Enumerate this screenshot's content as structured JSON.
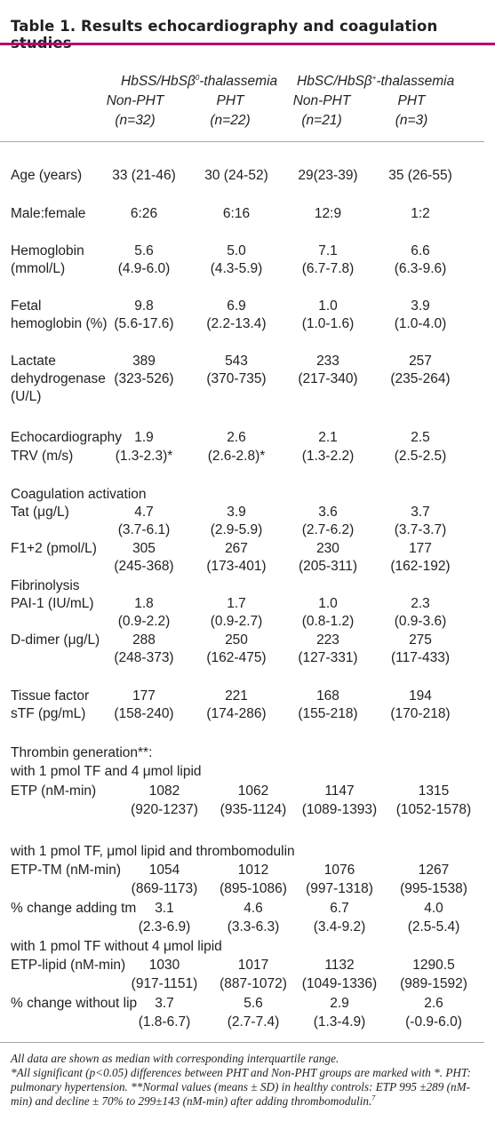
{
  "title": "Table 1. Results echocardiography and coagulation studies",
  "headers": {
    "group1": "HbSS/HbSβ",
    "group1_sup": "0",
    "group1_suffix": "-thalassemia",
    "group2": "HbSC/HbSβ",
    "group2_sup": "+",
    "group2_suffix": "-thalassemia",
    "cols": [
      {
        "label": "Non-PHT",
        "n": "(n=32)"
      },
      {
        "label": "PHT",
        "n": "(n=22)"
      },
      {
        "label": "Non-PHT",
        "n": "(n=21)"
      },
      {
        "label": "PHT",
        "n": "(n=3)"
      }
    ]
  },
  "rows": {
    "age": {
      "label": "Age (years)",
      "v": [
        "33 (21-46)",
        "30 (24-52)",
        "29(23-39)",
        "35 (26-55)"
      ]
    },
    "sex": {
      "label": "Male:female",
      "v": [
        "6:26",
        "6:16",
        "12:9",
        "1:2"
      ]
    },
    "hb": {
      "label1": "Hemoglobin",
      "label2": "(mmol/L)",
      "v": [
        "5.6",
        "5.0",
        "7.1",
        "6.6"
      ],
      "r": [
        "(4.9-6.0)",
        "(4.3-5.9)",
        "(6.7-7.8)",
        "(6.3-9.6)"
      ]
    },
    "hbf": {
      "label1": "Fetal",
      "label2": "hemoglobin (%)",
      "v": [
        "9.8",
        "6.9",
        "1.0",
        "3.9"
      ],
      "r": [
        "(5.6-17.6)",
        "(2.2-13.4)",
        "(1.0-1.6)",
        "(1.0-4.0)"
      ]
    },
    "ldh": {
      "label1": "Lactate",
      "label2": "dehydrogenase",
      "label3": "(U/L)",
      "v": [
        "389",
        "543",
        "233",
        "257"
      ],
      "r": [
        "(323-526)",
        "(370-735)",
        "(217-340)",
        "(235-264)"
      ]
    },
    "echo": {
      "label1": "Echocardiography",
      "label2": "TRV (m/s)",
      "v": [
        "1.9",
        "2.6",
        "2.1",
        "2.5"
      ],
      "r": [
        "(1.3-2.3)*",
        "(2.6-2.8)*",
        "(1.3-2.2)",
        "(2.5-2.5)"
      ]
    },
    "coag_title": "Coagulation activation",
    "tat": {
      "label": "Tat (μg/L)",
      "v": [
        "4.7",
        "3.9",
        "3.6",
        "3.7"
      ],
      "r": [
        "(3.7-6.1)",
        "(2.9-5.9)",
        "(2.7-6.2)",
        "(3.7-3.7)"
      ]
    },
    "f12": {
      "label": "F1+2 (pmol/L)",
      "v": [
        "305",
        "267",
        "230",
        "177"
      ],
      "r": [
        "(245-368)",
        "(173-401)",
        "(205-311)",
        "(162-192)"
      ]
    },
    "fib_title": "Fibrinolysis",
    "pai": {
      "label": "PAI-1 (IU/mL)",
      "v": [
        "1.8",
        "1.7",
        "1.0",
        "2.3"
      ],
      "r": [
        "(0.9-2.2)",
        "(0.9-2.7)",
        "(0.8-1.2)",
        "(0.9-3.6)"
      ]
    },
    "dd": {
      "label": "D-dimer (μg/L)",
      "v": [
        "288",
        "250",
        "223",
        "275"
      ],
      "r": [
        "(248-373)",
        "(162-475)",
        "(127-331)",
        "(117-433)"
      ]
    },
    "tf": {
      "label1": "Tissue factor",
      "label2": "sTF (pg/mL)",
      "v": [
        "177",
        "221",
        "168",
        "194"
      ],
      "r": [
        "(158-240)",
        "(174-286)",
        "(155-218)",
        "(170-218)"
      ]
    },
    "tg_title": "Thrombin generation**:",
    "tg_sub1": "with 1 pmol TF and 4 μmol lipid",
    "etp": {
      "label": "ETP (nM-min)",
      "v": [
        "1082",
        "1062",
        "1147",
        "1315"
      ],
      "r": [
        "(920-1237)",
        "(935-1124)",
        "(1089-1393)",
        "(1052-1578)"
      ]
    },
    "tg_sub2": "with 1 pmol TF, μmol lipid and thrombomodulin",
    "etptm": {
      "label": "ETP-TM (nM-min)",
      "v": [
        "1054",
        "1012",
        "1076",
        "1267"
      ],
      "r": [
        "(869-1173)",
        "(895-1086)",
        "(997-1318)",
        "(995-1538)"
      ]
    },
    "pctm": {
      "label": "% change adding tm",
      "v": [
        "3.1",
        "4.6",
        "6.7",
        "4.0"
      ],
      "r": [
        "(2.3-6.9)",
        "(3.3-6.3)",
        "(3.4-9.2)",
        "(2.5-5.4)"
      ]
    },
    "tg_sub3": "with 1 pmol TF without 4 μmol lipid",
    "etplip": {
      "label": "ETP-lipid (nM-min)",
      "v": [
        "1030",
        "1017",
        "1132",
        "1290.5"
      ],
      "r": [
        "(917-1151)",
        "(887-1072)",
        "(1049-1336)",
        "(989-1592)"
      ]
    },
    "pclip": {
      "label": "% change without lip",
      "v": [
        "3.7",
        "5.6",
        "2.9",
        "2.6"
      ],
      "r": [
        "(1.8-6.7)",
        "(2.7-7.4)",
        "(1.3-4.9)",
        "(-0.9-6.0)"
      ]
    }
  },
  "footnote": {
    "line1": "All data are shown as median with corresponding interquartile range.",
    "line2": "*All significant (p<0.05) differences between PHT and Non-PHT groups are marked with *. PHT: pulmonary hypertension. **Normal values (means ± SD) in healthy controls: ETP 995 ±289 (nM-min) and decline ± 70% to 299±143 (nM-min) after adding thrombomodulin.",
    "ref": "7"
  },
  "colors": {
    "accent": "#b5006e",
    "rule": "#a7a9ac",
    "text": "#231f20"
  }
}
